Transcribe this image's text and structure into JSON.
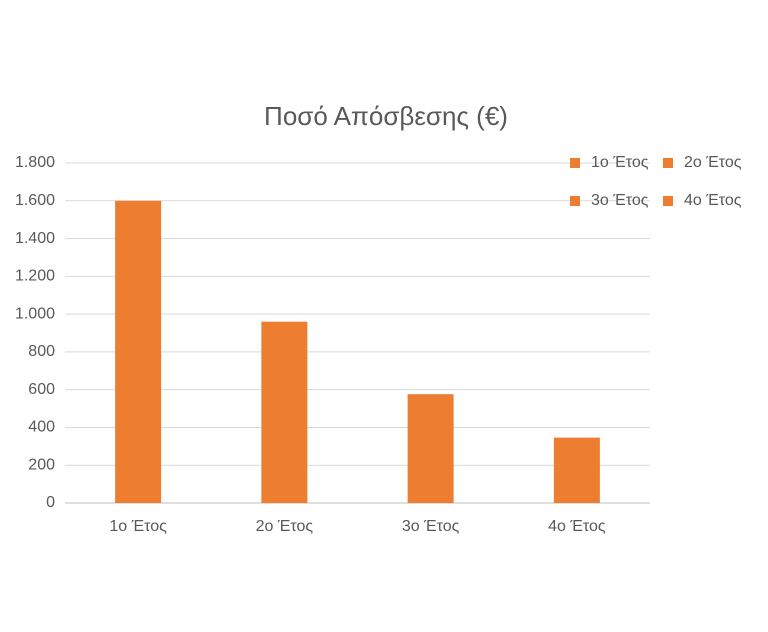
{
  "chart_data": {
    "type": "bar",
    "title": "Ποσό Απόσβεσης (€)",
    "categories": [
      "1ο Έτος",
      "2ο Έτος",
      "3ο Έτος",
      "4ο Έτος"
    ],
    "values": [
      1600,
      960,
      576,
      346
    ],
    "color": "#ed7d31",
    "ylim": [
      0,
      1800
    ],
    "yticks": [
      0,
      200,
      400,
      600,
      800,
      {
        "value": 1000,
        "label": "1.000"
      },
      {
        "value": 1200,
        "label": "1.200"
      },
      {
        "value": 1400,
        "label": "1.400"
      },
      {
        "value": 1600,
        "label": "1.600"
      },
      {
        "value": 1800,
        "label": "1.800"
      }
    ],
    "grid": true,
    "legend": "top-right"
  }
}
